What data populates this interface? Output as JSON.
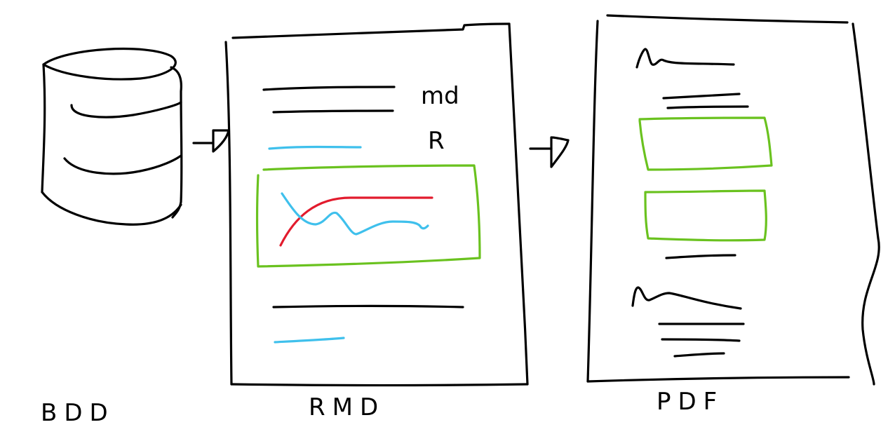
{
  "labels": {
    "database": "BDD",
    "rmd": "RMD",
    "pdf": "PDF",
    "markdown_note": "md",
    "r_note": "R"
  },
  "colors": {
    "ink": "#000000",
    "r_chunk": "#3fc0ec",
    "figure_box": "#6ac21f",
    "curve_red": "#e21b2d",
    "curve_blue": "#3fc0ec"
  }
}
